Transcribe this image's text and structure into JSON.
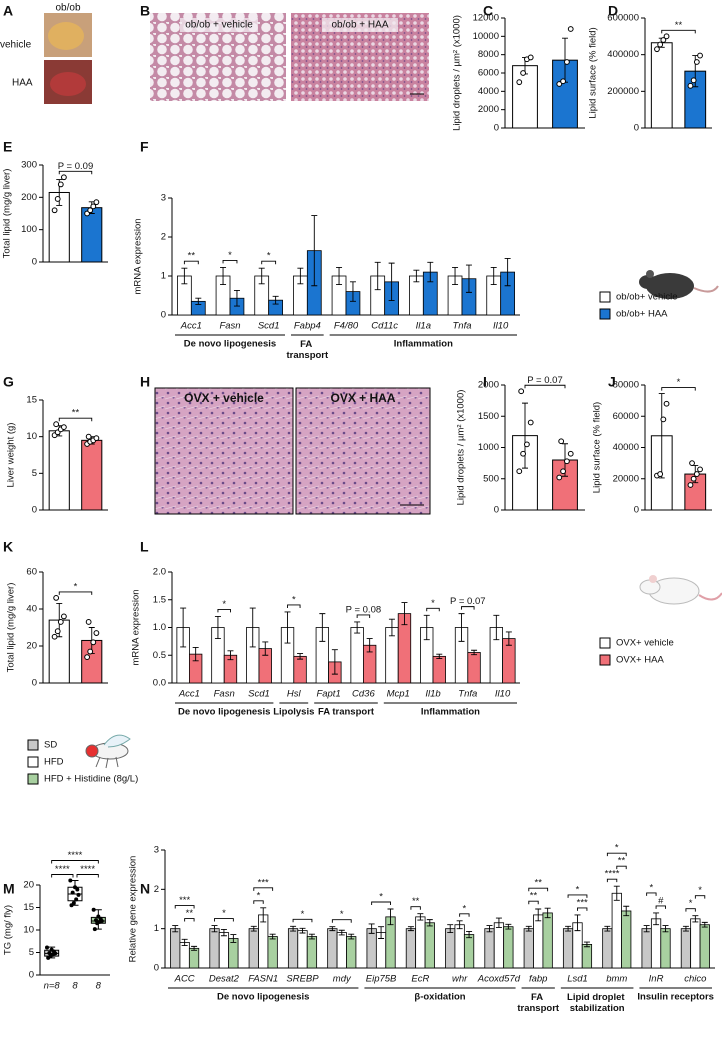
{
  "panels": [
    "A",
    "B",
    "C",
    "D",
    "E",
    "F",
    "G",
    "H",
    "I",
    "J",
    "K",
    "L",
    "M",
    "N"
  ],
  "images": {
    "A": {
      "strain": "ob/ob",
      "rows": [
        "vehicle",
        "HAA"
      ]
    },
    "B": [
      "ob/ob + vehicle",
      "ob/ob + HAA"
    ],
    "H": [
      "OVX + vehicle",
      "OVX + HAA"
    ]
  },
  "chart_data": [
    {
      "type": "bar",
      "ylabel": "Lipid droplets / µm² (x1000)",
      "ylim": [
        0,
        12000
      ],
      "yticks": [
        0,
        2000,
        4000,
        6000,
        8000,
        10000,
        12000
      ],
      "values": [
        6800,
        7400
      ],
      "errors": [
        900,
        2400
      ],
      "colors": [
        "#ffffff",
        "#1b75d0"
      ],
      "points": [
        [
          5000,
          6000,
          7500,
          7700
        ],
        [
          4800,
          5100,
          7200,
          10800
        ]
      ]
    },
    {
      "type": "bar",
      "ylabel": "Lipid surface (% field)",
      "ylim": [
        0,
        600000
      ],
      "yticks": [
        0,
        200000,
        400000,
        600000
      ],
      "values": [
        465000,
        310000
      ],
      "errors": [
        25000,
        85000
      ],
      "colors": [
        "#ffffff",
        "#1b75d0"
      ],
      "points": [
        [
          430000,
          455000,
          480000,
          500000
        ],
        [
          230000,
          260000,
          360000,
          395000
        ]
      ],
      "significance": "**"
    },
    {
      "type": "bar",
      "ylabel": "Total lipid (mg/g liver)",
      "ylim": [
        0,
        300
      ],
      "yticks": [
        0,
        100,
        200,
        300
      ],
      "values": [
        215,
        168
      ],
      "errors": [
        40,
        18
      ],
      "colors": [
        "#ffffff",
        "#1b75d0"
      ],
      "points": [
        [
          160,
          195,
          240,
          262
        ],
        [
          150,
          160,
          172,
          185
        ]
      ],
      "significance": "P = 0.09"
    },
    {
      "type": "grouped_bar",
      "ylabel": "mRNA expression",
      "ylim": [
        0,
        3
      ],
      "yticks": [
        0,
        1,
        2,
        3
      ],
      "category_groups": [
        {
          "label": "De novo lipogenesis",
          "categories": [
            "Acc1",
            "Fasn",
            "Scd1"
          ]
        },
        {
          "label": "FA transport",
          "categories": [
            "Fabp4"
          ]
        },
        {
          "label": "Inflammation",
          "categories": [
            "F4/80",
            "Cd11c",
            "Il1a",
            "Tnfa",
            "Il10"
          ]
        }
      ],
      "series": [
        {
          "name": "ob/ob+ vehicle",
          "color": "#ffffff",
          "values": [
            1,
            1,
            1,
            1,
            1,
            1,
            1,
            1,
            1
          ],
          "errors": [
            0.2,
            0.22,
            0.2,
            0.2,
            0.22,
            0.35,
            0.15,
            0.22,
            0.22
          ]
        },
        {
          "name": "ob/ob+ HAA",
          "color": "#1b75d0",
          "values": [
            0.35,
            0.43,
            0.38,
            1.65,
            0.6,
            0.85,
            1.1,
            0.93,
            1.1
          ],
          "errors": [
            0.08,
            0.2,
            0.1,
            0.9,
            0.25,
            0.48,
            0.25,
            0.35,
            0.35
          ]
        }
      ],
      "significance": [
        "**",
        "*",
        "*",
        null,
        null,
        null,
        null,
        null,
        null
      ]
    },
    {
      "type": "bar",
      "ylabel": "Liver weight (g)",
      "ylim": [
        0,
        15
      ],
      "yticks": [
        0,
        5,
        10,
        15
      ],
      "values": [
        10.8,
        9.5
      ],
      "errors": [
        0.7,
        0.5
      ],
      "colors": [
        "#ffffff",
        "#f07078"
      ],
      "points": [
        [
          10.2,
          10.6,
          11,
          11.3,
          11.7
        ],
        [
          9,
          9.3,
          9.5,
          9.8,
          10
        ]
      ],
      "significance": "**"
    },
    {
      "type": "bar",
      "ylabel": "Lipid droplets / µm² (x1000)",
      "ylim": [
        0,
        2000
      ],
      "yticks": [
        0,
        500,
        1000,
        1500,
        2000
      ],
      "values": [
        1190,
        800
      ],
      "errors": [
        520,
        260
      ],
      "colors": [
        "#ffffff",
        "#f07078"
      ],
      "points": [
        [
          620,
          900,
          1050,
          1400,
          1900
        ],
        [
          520,
          620,
          780,
          900,
          1100
        ]
      ],
      "significance": "P = 0.07"
    },
    {
      "type": "bar",
      "ylabel": "Lipid surface (% field)",
      "ylim": [
        0,
        80000
      ],
      "yticks": [
        0,
        20000,
        40000,
        60000,
        80000
      ],
      "values": [
        47500,
        23000
      ],
      "errors": [
        27000,
        5500
      ],
      "colors": [
        "#ffffff",
        "#f07078"
      ],
      "points": [
        [
          22000,
          23000,
          58000,
          68000
        ],
        [
          16000,
          20000,
          23000,
          26000,
          30000
        ]
      ],
      "significance": "*"
    },
    {
      "type": "bar",
      "ylabel": "Total lipid (mg/g liver)",
      "ylim": [
        0,
        60
      ],
      "yticks": [
        0,
        20,
        40,
        60
      ],
      "values": [
        34,
        23
      ],
      "errors": [
        9,
        7
      ],
      "colors": [
        "#ffffff",
        "#f07078"
      ],
      "points": [
        [
          25,
          28,
          33,
          36,
          46
        ],
        [
          14,
          17,
          22,
          27,
          33
        ]
      ],
      "significance": "*"
    },
    {
      "type": "grouped_bar",
      "ylabel": "mRNA expression",
      "ylim": [
        0,
        2
      ],
      "yticks": [
        {
          "value": 0,
          "label": "0.0"
        },
        {
          "value": 0.5,
          "label": "0.5"
        },
        {
          "value": 1,
          "label": "1.0"
        },
        {
          "value": 1.5,
          "label": "1.5"
        },
        {
          "value": 2,
          "label": "2.0"
        }
      ],
      "category_groups": [
        {
          "label": "De novo lipogenesis",
          "categories": [
            "Acc1",
            "Fasn",
            "Scd1"
          ]
        },
        {
          "label": "Lipolysis",
          "categories": [
            "Hsl"
          ]
        },
        {
          "label": "FA transport",
          "categories": [
            "Fapt1",
            "Cd36"
          ]
        },
        {
          "label": "Inflammation",
          "categories": [
            "Mcp1",
            "Il1b",
            "Tnfa",
            "Il10"
          ]
        }
      ],
      "series": [
        {
          "name": "OVX+ vehicle",
          "color": "#ffffff",
          "values": [
            1,
            1,
            1,
            1,
            1,
            1,
            1,
            1,
            1,
            1
          ],
          "errors": [
            0.35,
            0.2,
            0.35,
            0.28,
            0.25,
            0.1,
            0.15,
            0.22,
            0.25,
            0.22
          ]
        },
        {
          "name": "OVX+ HAA",
          "color": "#f07078",
          "values": [
            0.52,
            0.5,
            0.62,
            0.48,
            0.38,
            0.68,
            1.25,
            0.48,
            0.55,
            0.8
          ],
          "errors": [
            0.12,
            0.08,
            0.12,
            0.05,
            0.22,
            0.12,
            0.2,
            0.04,
            0.04,
            0.12
          ]
        }
      ],
      "significance": [
        null,
        "*",
        null,
        "*",
        null,
        "P = 0.08",
        null,
        "*",
        "P = 0.07",
        null
      ]
    },
    {
      "type": "box",
      "ylabel": "TG (mg/ fly)",
      "ylim": [
        0,
        20
      ],
      "yticks": [
        0,
        5,
        10,
        15,
        20
      ],
      "categories": [
        "n=8",
        "8",
        "8"
      ],
      "colors": [
        "#c8c8c8",
        "#ffffff",
        "#a8d0a0"
      ],
      "boxes": [
        {
          "min": 3.8,
          "q1": 4.2,
          "median": 4.8,
          "q3": 5.5,
          "max": 6.2
        },
        {
          "min": 15.5,
          "q1": 16.5,
          "median": 18,
          "q3": 19.5,
          "max": 21
        },
        {
          "min": 10.2,
          "q1": 11.5,
          "median": 12,
          "q3": 12.8,
          "max": 14.5
        }
      ],
      "points": [
        [
          3.8,
          4.2,
          4.5,
          4.8,
          4.9,
          5.2,
          5.6,
          6.1
        ],
        [
          15.5,
          16,
          16.8,
          17.8,
          18.3,
          19,
          19.5,
          21
        ],
        [
          10.2,
          11.5,
          11.8,
          12,
          12.2,
          12.5,
          13,
          14.5
        ]
      ],
      "significance": [
        {
          "text": "****",
          "pair": [
            0,
            1
          ]
        },
        {
          "text": "****",
          "pair": [
            1,
            2
          ]
        },
        {
          "text": "****",
          "pair": [
            0,
            2
          ]
        }
      ]
    },
    {
      "type": "grouped_bar",
      "ylabel": "Relative gene expression",
      "ylim": [
        0,
        3
      ],
      "yticks": [
        0,
        1,
        2,
        3
      ],
      "category_groups": [
        {
          "label": "De novo lipogenesis",
          "categories": [
            "ACC",
            "Desat2",
            "FASN1",
            "SREBP",
            "mdy"
          ]
        },
        {
          "label": "β-oxidation",
          "categories": [
            "Eip75B",
            "EcR",
            "whr",
            "Acoxd57d"
          ]
        },
        {
          "label": "FA transport",
          "categories": [
            "fabp"
          ]
        },
        {
          "label": "Lipid droplet stabilization",
          "categories": [
            "Lsd1",
            "bmm"
          ]
        },
        {
          "label": "Insulin receptors",
          "categories": [
            "InR",
            "chico"
          ]
        }
      ],
      "series": [
        {
          "name": "SD",
          "color": "#c8c8c8",
          "values": [
            1,
            1,
            1,
            1,
            1,
            1,
            1,
            1,
            1,
            1,
            1,
            1,
            1,
            1
          ],
          "errors": [
            0.08,
            0.08,
            0.06,
            0.06,
            0.05,
            0.12,
            0.05,
            0.1,
            0.08,
            0.06,
            0.06,
            0.06,
            0.08,
            0.06
          ]
        },
        {
          "name": "HFD",
          "color": "#ffffff",
          "values": [
            0.65,
            0.9,
            1.35,
            0.95,
            0.9,
            0.9,
            1.3,
            1.1,
            1.15,
            1.35,
            1.15,
            1.9,
            1.25,
            1.25
          ],
          "errors": [
            0.08,
            0.08,
            0.18,
            0.06,
            0.06,
            0.15,
            0.08,
            0.1,
            0.12,
            0.15,
            0.2,
            0.18,
            0.15,
            0.08
          ]
        },
        {
          "name": "HFD + Histidine (8g/L)",
          "color": "#a8d0a0",
          "values": [
            0.5,
            0.75,
            0.8,
            0.8,
            0.8,
            1.3,
            1.15,
            0.85,
            1.05,
            1.4,
            0.6,
            1.45,
            1.0,
            1.1
          ],
          "errors": [
            0.05,
            0.1,
            0.06,
            0.06,
            0.06,
            0.2,
            0.08,
            0.08,
            0.06,
            0.12,
            0.06,
            0.12,
            0.08,
            0.06
          ]
        }
      ],
      "significance": [
        [
          {
            "text": "**",
            "pair": [
              1,
              2
            ]
          },
          {
            "text": "***",
            "pair": [
              0,
              2
            ]
          }
        ],
        [
          {
            "text": "*",
            "pair": [
              0,
              2
            ]
          }
        ],
        [
          {
            "text": "*",
            "pair": [
              0,
              1
            ]
          },
          {
            "text": "***",
            "pair": [
              0,
              2
            ]
          }
        ],
        [
          {
            "text": "*",
            "pair": [
              0,
              2
            ]
          }
        ],
        [
          {
            "text": "*",
            "pair": [
              0,
              2
            ]
          }
        ],
        [
          {
            "text": "*",
            "pair": [
              0,
              2
            ]
          }
        ],
        [
          {
            "text": "**",
            "pair": [
              0,
              1
            ]
          }
        ],
        [
          {
            "text": "*",
            "pair": [
              1,
              2
            ]
          }
        ],
        null,
        [
          {
            "text": "**",
            "pair": [
              0,
              1
            ]
          },
          {
            "text": "**",
            "pair": [
              0,
              2
            ]
          }
        ],
        [
          {
            "text": "***",
            "pair": [
              1,
              2
            ]
          },
          {
            "text": "*",
            "pair": [
              0,
              2
            ]
          }
        ],
        [
          {
            "text": "****",
            "pair": [
              0,
              1
            ]
          },
          {
            "text": "**",
            "pair": [
              1,
              2
            ]
          },
          {
            "text": "*",
            "pair": [
              0,
              2
            ]
          }
        ],
        [
          {
            "text": "#",
            "pair": [
              1,
              2
            ]
          },
          {
            "text": "*",
            "pair": [
              0,
              1
            ]
          }
        ],
        [
          {
            "text": "*",
            "pair": [
              0,
              1
            ]
          },
          {
            "text": "*",
            "pair": [
              1,
              2
            ]
          }
        ]
      ]
    }
  ]
}
